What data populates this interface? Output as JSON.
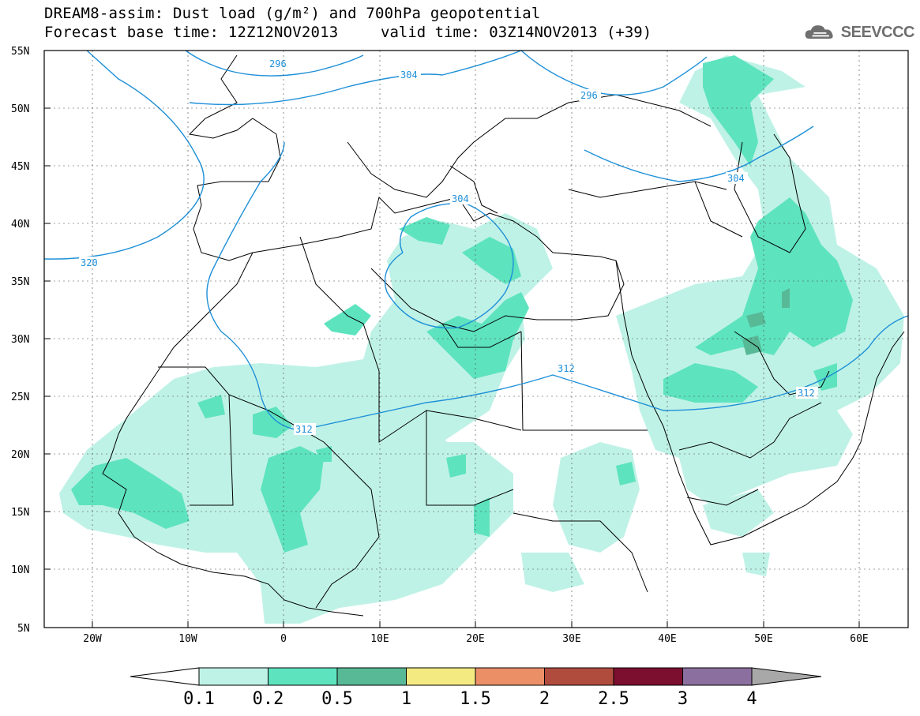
{
  "title": {
    "line1": "DREAM8-assim: Dust load (g/m²) and 700hPa geopotential",
    "line2": "Forecast base time: 12Z12NOV2013",
    "valid": "valid time: 03Z14NOV2013 (+39)"
  },
  "logo": {
    "text": "SEEVCCC",
    "icon": "cloud-icon"
  },
  "map": {
    "lon_range": [
      -25,
      65
    ],
    "lat_range": [
      5,
      55
    ],
    "y_ticks": [
      "55N",
      "50N",
      "45N",
      "40N",
      "35N",
      "30N",
      "25N",
      "20N",
      "15N",
      "10N",
      "5N"
    ],
    "x_ticks": [
      "20W",
      "10W",
      "0",
      "10E",
      "20E",
      "30E",
      "40E",
      "50E",
      "60E"
    ],
    "contour_color": "#1e90d8",
    "contour_labels": [
      "296",
      "304",
      "296",
      "304",
      "304",
      "320",
      "312",
      "312",
      "312"
    ]
  },
  "colorbar": {
    "labels": [
      "0.1",
      "0.2",
      "0.5",
      "1",
      "1.5",
      "2",
      "2.5",
      "3",
      "4"
    ],
    "colors": [
      "#bff2e6",
      "#5ee3bf",
      "#58b996",
      "#f4ea82",
      "#eb8f67",
      "#b04c3e",
      "#7c0f2f",
      "#8b6f9f",
      "#a8a8a8"
    ]
  }
}
